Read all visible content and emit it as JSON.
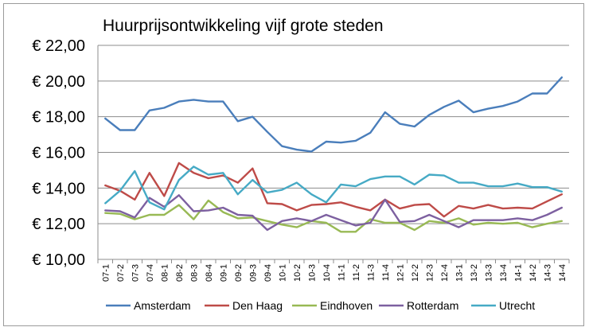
{
  "chart_data": {
    "type": "line",
    "title": "Huurprijsontwikkeling vijf grote steden",
    "xlabel": "",
    "ylabel": "",
    "ylim": [
      10,
      22
    ],
    "yticks": [
      10,
      12,
      14,
      16,
      18,
      20,
      22
    ],
    "ytick_labels": [
      "€ 10,00",
      "€ 12,00",
      "€ 14,00",
      "€ 16,00",
      "€ 18,00",
      "€ 20,00",
      "€ 22,00"
    ],
    "grid": "horizontal",
    "legend": "bottom",
    "categories": [
      "07-1",
      "07-2",
      "07-3",
      "07-4",
      "08-1",
      "08-2",
      "08-3",
      "08-4",
      "09-1",
      "09-2",
      "09-3",
      "09-4",
      "10-1",
      "10-2",
      "10-3",
      "10-4",
      "11-1",
      "11-2",
      "11-3",
      "11-4",
      "12-1",
      "12-2",
      "12-3",
      "12-4",
      "13-1",
      "13-2",
      "13-3",
      "13-4",
      "14-1",
      "14-2",
      "14-3",
      "14-4"
    ],
    "series": [
      {
        "name": "Amsterdam",
        "color": "#4a7ebb",
        "values": [
          17.9,
          17.25,
          17.25,
          18.35,
          18.5,
          18.85,
          18.95,
          18.85,
          18.85,
          17.75,
          18.0,
          17.15,
          16.35,
          16.15,
          16.05,
          16.6,
          16.55,
          16.65,
          17.1,
          18.25,
          17.6,
          17.45,
          18.1,
          18.55,
          18.9,
          18.25,
          18.45,
          18.6,
          18.85,
          19.3,
          19.3,
          20.2
        ]
      },
      {
        "name": "Den Haag",
        "color": "#be4b48",
        "values": [
          14.15,
          13.85,
          13.35,
          14.85,
          13.55,
          15.4,
          14.85,
          14.55,
          14.7,
          14.3,
          15.1,
          13.15,
          13.1,
          12.75,
          13.05,
          13.1,
          13.2,
          12.95,
          12.75,
          13.35,
          12.85,
          13.05,
          13.1,
          12.4,
          13.0,
          12.85,
          13.05,
          12.85,
          12.9,
          12.85,
          13.25,
          13.65
        ]
      },
      {
        "name": "Eindhoven",
        "color": "#98b954",
        "values": [
          12.6,
          12.55,
          12.25,
          12.5,
          12.5,
          13.05,
          12.25,
          13.3,
          12.65,
          12.3,
          12.35,
          12.15,
          11.95,
          11.8,
          12.15,
          12.05,
          11.55,
          11.55,
          12.25,
          12.05,
          12.05,
          11.65,
          12.15,
          12.05,
          12.3,
          11.95,
          12.05,
          12.0,
          12.05,
          11.8,
          12.0,
          12.15
        ]
      },
      {
        "name": "Rotterdam",
        "color": "#7d60a0",
        "values": [
          12.75,
          12.7,
          12.35,
          13.45,
          12.95,
          13.6,
          12.7,
          12.75,
          12.9,
          12.5,
          12.45,
          11.65,
          12.15,
          12.3,
          12.15,
          12.5,
          12.2,
          11.9,
          12.05,
          13.35,
          12.1,
          12.15,
          12.5,
          12.15,
          11.8,
          12.2,
          12.2,
          12.2,
          12.3,
          12.2,
          12.5,
          12.9
        ]
      },
      {
        "name": "Utrecht",
        "color": "#46aac5",
        "values": [
          13.15,
          13.85,
          14.95,
          13.2,
          12.8,
          14.45,
          15.2,
          14.75,
          14.85,
          13.65,
          14.45,
          13.75,
          13.9,
          14.3,
          13.65,
          13.2,
          14.2,
          14.1,
          14.5,
          14.65,
          14.65,
          14.2,
          14.75,
          14.7,
          14.3,
          14.3,
          14.1,
          14.1,
          14.25,
          14.05,
          14.05,
          13.8
        ]
      }
    ]
  }
}
